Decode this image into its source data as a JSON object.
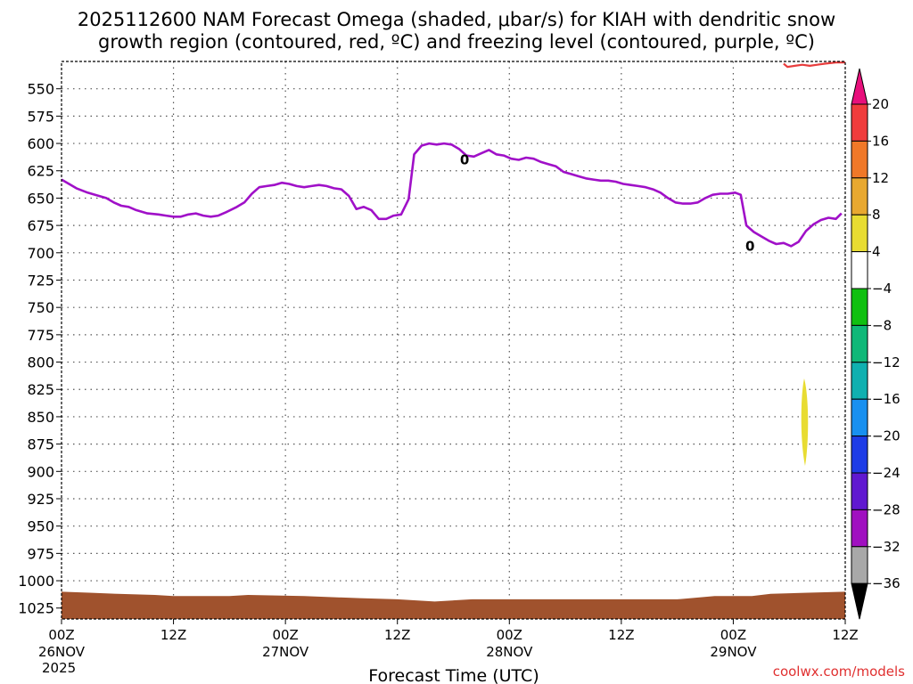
{
  "chart_data": {
    "type": "contour",
    "title_line1": "2025112600 NAM Forecast Omega (shaded, μbar/s) for KIAH with dendritic snow",
    "title_line2": "growth region (contoured, red, ºC) and freezing level (contoured, purple, ºC)",
    "xlabel": "Forecast Time (UTC)",
    "credit": "coolwx.com/models",
    "x_range_hours": [
      0,
      84
    ],
    "y_range_mb": [
      1035,
      525
    ],
    "y_ticks": [
      "550",
      "575",
      "600",
      "625",
      "650",
      "675",
      "700",
      "725",
      "750",
      "775",
      "800",
      "825",
      "850",
      "875",
      "900",
      "925",
      "950",
      "975",
      "1000",
      "1025"
    ],
    "y_tick_values": [
      550,
      575,
      600,
      625,
      650,
      675,
      700,
      725,
      750,
      775,
      800,
      825,
      850,
      875,
      900,
      925,
      950,
      975,
      1000,
      1025
    ],
    "x_ticks": [
      {
        "hour": 0,
        "label": "00Z",
        "date": "26NOV",
        "year": "2025"
      },
      {
        "hour": 12,
        "label": "12Z",
        "date": "",
        "year": ""
      },
      {
        "hour": 24,
        "label": "00Z",
        "date": "27NOV",
        "year": ""
      },
      {
        "hour": 36,
        "label": "12Z",
        "date": "",
        "year": ""
      },
      {
        "hour": 48,
        "label": "00Z",
        "date": "28NOV",
        "year": ""
      },
      {
        "hour": 60,
        "label": "12Z",
        "date": "",
        "year": ""
      },
      {
        "hour": 72,
        "label": "00Z",
        "date": "29NOV",
        "year": ""
      },
      {
        "hour": 84,
        "label": "12Z",
        "date": "",
        "year": ""
      }
    ],
    "colorbar": {
      "labels": [
        "20",
        "16",
        "12",
        "8",
        "4",
        "−4",
        "−8",
        "−12",
        "−16",
        "−20",
        "−24",
        "−28",
        "−32",
        "−36"
      ],
      "colors": [
        "#f03c3c",
        "#f07828",
        "#e8a830",
        "#e8dc32",
        "#ffffff",
        "#10c010",
        "#10b878",
        "#10b0b0",
        "#1890f0",
        "#1e3ce6",
        "#6018d0",
        "#a010c0",
        "#a8a8a8"
      ],
      "top_arrow": "#e8107c",
      "bottom_arrow": "#000000"
    },
    "freezing_level": {
      "name": "freezing level (purple, 0 ºC)",
      "color": "#a010c8",
      "contour_label": "0",
      "label_points": [
        [
          43.2,
          615
        ],
        [
          73.8,
          694
        ]
      ],
      "points": [
        [
          0,
          633
        ],
        [
          0.8,
          637
        ],
        [
          1.6,
          641
        ],
        [
          2.8,
          645
        ],
        [
          3.6,
          647
        ],
        [
          4.8,
          650
        ],
        [
          5.6,
          654
        ],
        [
          6.4,
          657
        ],
        [
          7.2,
          658
        ],
        [
          8.0,
          661
        ],
        [
          9.2,
          664
        ],
        [
          10.4,
          665
        ],
        [
          11.2,
          666
        ],
        [
          12.0,
          667
        ],
        [
          12.8,
          667
        ],
        [
          13.6,
          665
        ],
        [
          14.4,
          664
        ],
        [
          15.2,
          666
        ],
        [
          16.0,
          667
        ],
        [
          16.8,
          666
        ],
        [
          17.6,
          663
        ],
        [
          18.8,
          658
        ],
        [
          19.6,
          654
        ],
        [
          20.4,
          646
        ],
        [
          21.2,
          640
        ],
        [
          22.0,
          639
        ],
        [
          22.8,
          638
        ],
        [
          23.6,
          636
        ],
        [
          24.4,
          637
        ],
        [
          25.2,
          639
        ],
        [
          26.0,
          640
        ],
        [
          26.8,
          639
        ],
        [
          27.6,
          638
        ],
        [
          28.4,
          639
        ],
        [
          29.2,
          641
        ],
        [
          30.0,
          642
        ],
        [
          30.8,
          648
        ],
        [
          31.6,
          660
        ],
        [
          32.4,
          658
        ],
        [
          33.2,
          661
        ],
        [
          34.0,
          669
        ],
        [
          34.8,
          669
        ],
        [
          35.6,
          666
        ],
        [
          36.4,
          665
        ],
        [
          37.2,
          651
        ],
        [
          37.8,
          610
        ],
        [
          38.6,
          602
        ],
        [
          39.4,
          600
        ],
        [
          40.2,
          601
        ],
        [
          41.0,
          600
        ],
        [
          41.8,
          601
        ],
        [
          42.6,
          605
        ],
        [
          43.4,
          611
        ],
        [
          44.2,
          612
        ],
        [
          45.0,
          609
        ],
        [
          45.8,
          606
        ],
        [
          46.6,
          610
        ],
        [
          47.4,
          611
        ],
        [
          48.2,
          614
        ],
        [
          49.0,
          615
        ],
        [
          49.8,
          613
        ],
        [
          50.6,
          614
        ],
        [
          51.4,
          617
        ],
        [
          52.2,
          619
        ],
        [
          53.0,
          621
        ],
        [
          53.8,
          626
        ],
        [
          54.6,
          628
        ],
        [
          55.4,
          630
        ],
        [
          56.2,
          632
        ],
        [
          57.0,
          633
        ],
        [
          57.8,
          634
        ],
        [
          58.6,
          634
        ],
        [
          59.4,
          635
        ],
        [
          60.2,
          637
        ],
        [
          61.0,
          638
        ],
        [
          61.8,
          639
        ],
        [
          62.6,
          640
        ],
        [
          63.4,
          642
        ],
        [
          64.2,
          645
        ],
        [
          65.0,
          650
        ],
        [
          65.8,
          654
        ],
        [
          66.6,
          655
        ],
        [
          67.4,
          655
        ],
        [
          68.2,
          654
        ],
        [
          69.0,
          650
        ],
        [
          69.8,
          647
        ],
        [
          70.6,
          646
        ],
        [
          71.4,
          646
        ],
        [
          72.2,
          645
        ],
        [
          72.8,
          647
        ],
        [
          73.4,
          675
        ],
        [
          74.2,
          681
        ],
        [
          75.0,
          685
        ],
        [
          75.8,
          689
        ],
        [
          76.6,
          692
        ],
        [
          77.4,
          691
        ],
        [
          78.2,
          694
        ],
        [
          79.0,
          690
        ],
        [
          79.8,
          680
        ],
        [
          80.6,
          674
        ],
        [
          81.4,
          670
        ],
        [
          82.2,
          668
        ],
        [
          83.0,
          669
        ],
        [
          83.6,
          664
        ]
      ]
    },
    "dgz_contour": {
      "name": "dendritic snow growth region (red)",
      "color": "#e83c3c",
      "points": [
        [
          77.4,
          527
        ],
        [
          77.8,
          530
        ],
        [
          78.6,
          529
        ],
        [
          79.4,
          528
        ],
        [
          80.2,
          529
        ],
        [
          81.0,
          528
        ],
        [
          81.8,
          527
        ],
        [
          83.0,
          526
        ],
        [
          84,
          526
        ]
      ]
    },
    "omega_shaded_areas": [
      {
        "label": "4 to 8",
        "color": "#e8dc32",
        "hour": 79.6,
        "top_mb": 815,
        "bottom_mb": 895
      }
    ],
    "terrain": {
      "color": "#a0522d",
      "surface_mb": [
        [
          0,
          1010
        ],
        [
          3,
          1011
        ],
        [
          6,
          1012
        ],
        [
          10,
          1013
        ],
        [
          12,
          1014
        ],
        [
          18,
          1014
        ],
        [
          20,
          1013
        ],
        [
          26,
          1014
        ],
        [
          32,
          1016
        ],
        [
          36,
          1017
        ],
        [
          40,
          1019
        ],
        [
          44,
          1017
        ],
        [
          50,
          1017
        ],
        [
          56,
          1017
        ],
        [
          60,
          1017
        ],
        [
          66,
          1017
        ],
        [
          70,
          1014
        ],
        [
          74,
          1014
        ],
        [
          76,
          1012
        ],
        [
          80,
          1011
        ],
        [
          84,
          1010
        ]
      ]
    }
  }
}
